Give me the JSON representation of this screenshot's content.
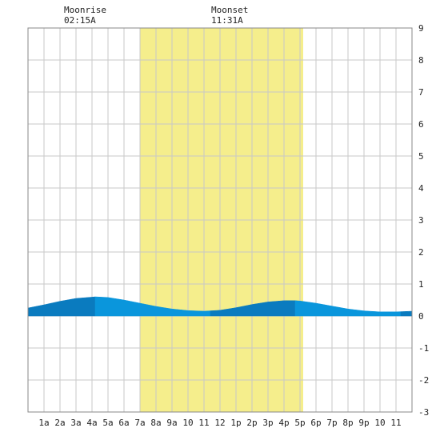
{
  "moon": {
    "rise_label": "Moonrise",
    "rise_time": "02:15A",
    "set_label": "Moonset",
    "set_time": "11:31A"
  },
  "colors": {
    "daylight": "#f5ee8c",
    "tide_dark": "#0a7bbf",
    "tide_light": "#0a96dc",
    "grid": "#c8c8c8",
    "border": "#888888"
  },
  "chart_data": {
    "type": "area",
    "title": "",
    "xlabel": "",
    "ylabel": "",
    "x_tick_labels": [
      "1a",
      "2a",
      "3a",
      "4a",
      "5a",
      "6a",
      "7a",
      "8a",
      "9a",
      "10",
      "11",
      "12",
      "1p",
      "2p",
      "3p",
      "4p",
      "5p",
      "6p",
      "7p",
      "8p",
      "9p",
      "10",
      "11"
    ],
    "xlim": [
      0,
      24
    ],
    "ylim": [
      -3,
      9
    ],
    "y_ticks": [
      9,
      8,
      7,
      6,
      5,
      4,
      3,
      2,
      1,
      0,
      -1,
      -2,
      -3
    ],
    "grid": true,
    "daylight": {
      "start_hour": 7.0,
      "end_hour": 17.2
    },
    "tide_series": {
      "name": "",
      "x": [
        0,
        1,
        2,
        3,
        4,
        4.2,
        5,
        6,
        7,
        8,
        9,
        10,
        11,
        12,
        13,
        14,
        15,
        16,
        16.7,
        17,
        18,
        19,
        20,
        21,
        22,
        23,
        24
      ],
      "y": [
        0.25,
        0.35,
        0.46,
        0.55,
        0.59,
        0.6,
        0.58,
        0.5,
        0.4,
        0.3,
        0.22,
        0.17,
        0.15,
        0.18,
        0.26,
        0.36,
        0.44,
        0.48,
        0.48,
        0.47,
        0.4,
        0.31,
        0.22,
        0.16,
        0.13,
        0.13,
        0.15
      ]
    },
    "shading_bands": [
      {
        "start_hour": 0,
        "end_hour": 4.2,
        "shade": "dark"
      },
      {
        "start_hour": 4.2,
        "end_hour": 11.4,
        "shade": "light"
      },
      {
        "start_hour": 11.4,
        "end_hour": 13.1,
        "shade": "dark"
      },
      {
        "start_hour": 13.1,
        "end_hour": 16.7,
        "shade": "dark"
      },
      {
        "start_hour": 16.7,
        "end_hour": 23.3,
        "shade": "light"
      },
      {
        "start_hour": 23.3,
        "end_hour": 24,
        "shade": "dark"
      }
    ]
  }
}
